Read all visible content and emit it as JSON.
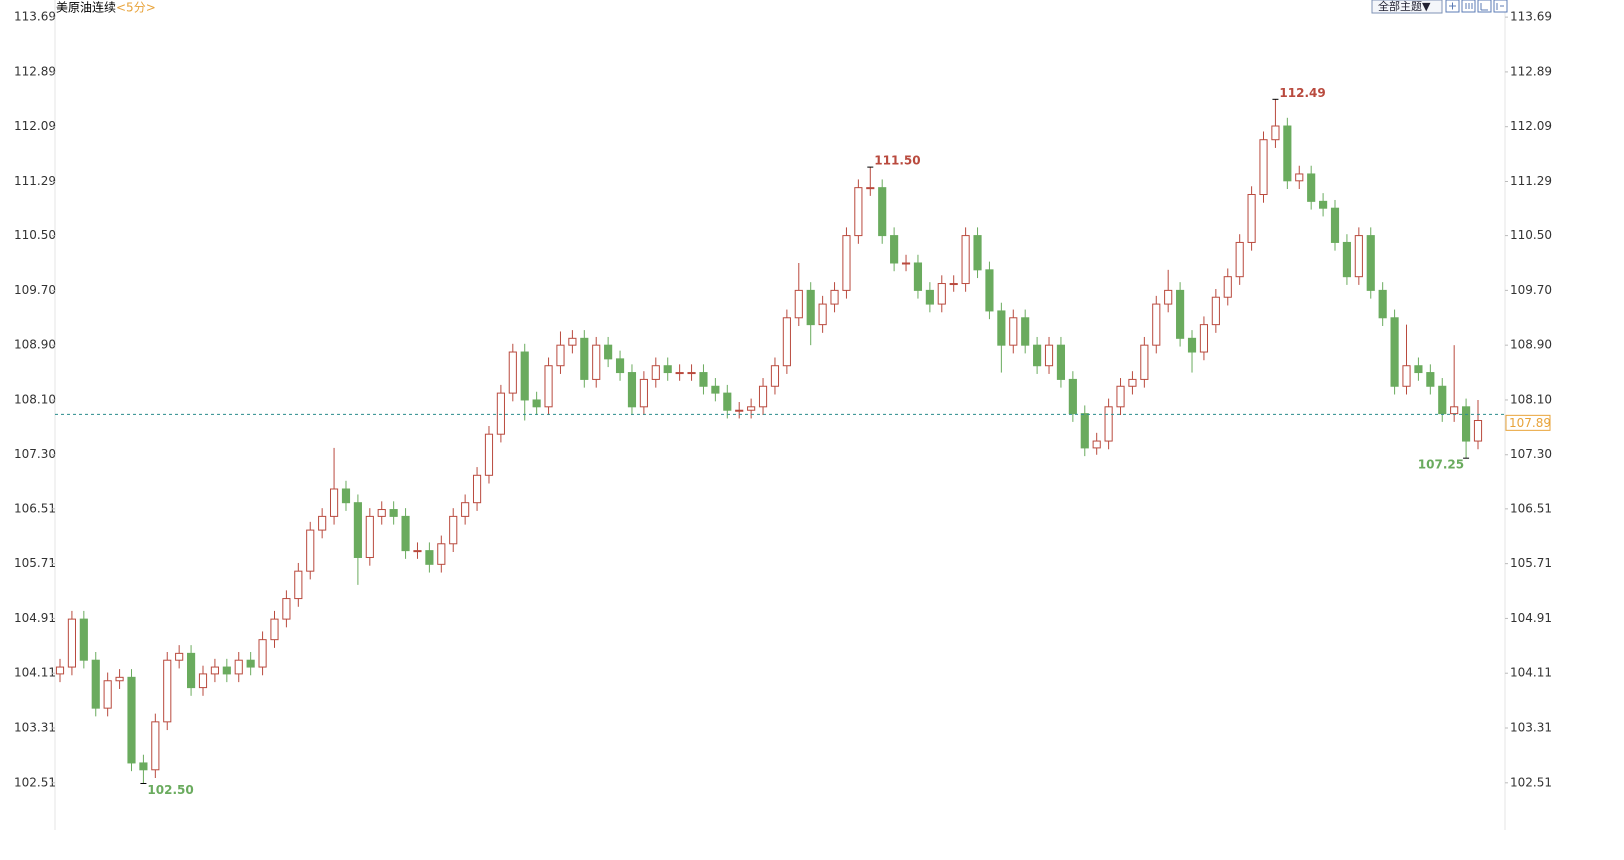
{
  "chart_data": {
    "type": "candlestick",
    "title": "美原油连续",
    "subtitle": "<5分>",
    "ylim": [
      101.85,
      113.94
    ],
    "yticks": [
      113.69,
      112.89,
      112.09,
      111.29,
      {
        "value": 110.5,
        "label": "110.50"
      },
      {
        "value": 109.7,
        "label": "109.70"
      },
      {
        "value": 108.9,
        "label": "108.90"
      },
      {
        "value": 108.1,
        "label": "108.10"
      },
      {
        "value": 107.3,
        "label": "107.30"
      },
      106.51,
      105.71,
      104.91,
      104.11,
      103.31,
      102.51
    ],
    "grid": false,
    "up_color": "#b94a3e",
    "down_color": "#6aab5e",
    "series": {
      "open": [
        104.1,
        104.2,
        104.9,
        104.3,
        103.6,
        104.0,
        104.05,
        102.8,
        102.7,
        103.4,
        104.3,
        104.4,
        103.9,
        104.1,
        104.2,
        104.1,
        104.3,
        104.2,
        104.6,
        104.9,
        105.2,
        105.6,
        106.2,
        106.4,
        106.8,
        106.6,
        105.8,
        106.4,
        106.5,
        106.4,
        105.9,
        105.9,
        105.7,
        106.0,
        106.4,
        106.6,
        107.0,
        107.6,
        108.2,
        108.8,
        108.1,
        108.0,
        108.6,
        108.9,
        109.0,
        108.4,
        108.9,
        108.7,
        108.5,
        108.0,
        108.4,
        108.6,
        108.5,
        108.5,
        108.5,
        108.3,
        108.2,
        107.95,
        107.95,
        108.0,
        108.3,
        108.6,
        109.3,
        109.7,
        109.2,
        109.5,
        109.7,
        110.5,
        111.2,
        111.2,
        110.5,
        110.1,
        110.1,
        109.7,
        109.5,
        109.8,
        109.8,
        110.5,
        110.0,
        109.4,
        108.9,
        109.3,
        108.9,
        108.6,
        108.9,
        108.4,
        107.9,
        107.4,
        107.5,
        108.0,
        108.3,
        108.4,
        108.9,
        109.5,
        109.7,
        109.0,
        108.8,
        109.2,
        109.6,
        109.9,
        110.4,
        111.1,
        111.9,
        112.1,
        111.3,
        111.4,
        111.0,
        110.9,
        110.4,
        109.9,
        110.5,
        109.7,
        109.3,
        108.3,
        108.6,
        108.5,
        108.3,
        107.9,
        108.0,
        107.5
      ],
      "high": [
        104.32,
        105.02,
        105.02,
        104.42,
        104.12,
        104.17,
        104.17,
        102.92,
        103.52,
        104.42,
        104.52,
        104.52,
        104.22,
        104.32,
        104.32,
        104.42,
        104.42,
        104.72,
        105.02,
        105.32,
        105.72,
        106.32,
        106.52,
        107.4,
        106.92,
        106.72,
        106.52,
        106.62,
        106.62,
        106.52,
        106.02,
        106.02,
        106.12,
        106.52,
        106.72,
        107.12,
        107.72,
        108.32,
        108.92,
        108.92,
        108.22,
        108.72,
        109.1,
        109.12,
        109.12,
        109.02,
        109.02,
        108.82,
        108.62,
        108.52,
        108.72,
        108.72,
        108.62,
        108.62,
        108.62,
        108.42,
        108.32,
        108.07,
        108.12,
        108.42,
        108.72,
        109.42,
        110.1,
        109.82,
        109.62,
        109.82,
        110.62,
        111.32,
        111.5,
        111.32,
        110.62,
        110.22,
        110.22,
        109.82,
        109.92,
        109.92,
        110.62,
        110.62,
        110.12,
        109.52,
        109.42,
        109.42,
        109.02,
        109.02,
        109.02,
        108.52,
        108.02,
        107.62,
        108.12,
        108.42,
        108.52,
        109.02,
        109.62,
        110.0,
        109.82,
        109.12,
        109.32,
        109.72,
        110.02,
        110.52,
        111.22,
        112.02,
        112.49,
        112.22,
        111.52,
        111.52,
        111.12,
        111.02,
        110.52,
        110.62,
        110.62,
        109.82,
        109.42,
        109.2,
        108.72,
        108.62,
        108.42,
        108.9,
        108.12,
        108.1
      ],
      "low": [
        103.98,
        104.08,
        104.18,
        103.48,
        103.48,
        103.88,
        102.68,
        102.5,
        102.58,
        103.28,
        104.18,
        103.78,
        103.78,
        103.98,
        103.98,
        103.98,
        104.08,
        104.08,
        104.48,
        104.78,
        105.08,
        105.48,
        106.08,
        106.28,
        106.48,
        105.4,
        105.68,
        106.28,
        106.28,
        105.78,
        105.78,
        105.58,
        105.58,
        105.88,
        106.28,
        106.48,
        106.88,
        107.48,
        108.08,
        107.8,
        107.88,
        107.88,
        108.48,
        108.78,
        108.28,
        108.28,
        108.58,
        108.38,
        107.88,
        107.88,
        108.28,
        108.38,
        108.38,
        108.38,
        108.18,
        108.08,
        107.83,
        107.83,
        107.83,
        107.88,
        108.18,
        108.48,
        109.18,
        108.9,
        109.08,
        109.38,
        109.58,
        110.38,
        111.08,
        110.38,
        109.98,
        109.98,
        109.58,
        109.38,
        109.38,
        109.68,
        109.68,
        109.88,
        109.28,
        108.5,
        108.78,
        108.78,
        108.48,
        108.48,
        108.28,
        107.78,
        107.28,
        107.3,
        107.38,
        107.88,
        108.18,
        108.28,
        108.78,
        109.38,
        108.88,
        108.5,
        108.68,
        109.08,
        109.48,
        109.78,
        110.28,
        110.98,
        111.78,
        111.18,
        111.18,
        110.88,
        110.78,
        110.28,
        109.78,
        109.78,
        109.58,
        109.18,
        108.18,
        108.18,
        108.38,
        108.18,
        107.78,
        107.78,
        107.25,
        107.38
      ],
      "close": [
        104.2,
        104.9,
        104.3,
        103.6,
        104.0,
        104.05,
        102.8,
        102.7,
        103.4,
        104.3,
        104.4,
        103.9,
        104.1,
        104.2,
        104.1,
        104.3,
        104.2,
        104.6,
        104.9,
        105.2,
        105.6,
        106.2,
        106.4,
        106.8,
        106.6,
        105.8,
        106.4,
        106.5,
        106.4,
        105.9,
        105.9,
        105.7,
        106.0,
        106.4,
        106.6,
        107.0,
        107.6,
        108.2,
        108.8,
        108.1,
        108.0,
        108.6,
        108.9,
        109.0,
        108.4,
        108.9,
        108.7,
        108.5,
        108.0,
        108.4,
        108.6,
        108.5,
        108.5,
        108.5,
        108.3,
        108.2,
        107.95,
        107.95,
        108.0,
        108.3,
        108.6,
        109.3,
        109.7,
        109.2,
        109.5,
        109.7,
        110.5,
        111.2,
        111.2,
        110.5,
        110.1,
        110.1,
        109.7,
        109.5,
        109.8,
        109.8,
        110.5,
        110.0,
        109.4,
        108.9,
        109.3,
        108.9,
        108.6,
        108.9,
        108.4,
        107.9,
        107.4,
        107.5,
        108.0,
        108.3,
        108.4,
        108.9,
        109.5,
        109.7,
        109.0,
        108.8,
        109.2,
        109.6,
        109.9,
        110.4,
        111.1,
        111.9,
        112.1,
        111.3,
        111.4,
        111.0,
        110.9,
        110.4,
        109.9,
        110.5,
        109.7,
        109.3,
        108.3,
        108.6,
        108.5,
        108.3,
        107.9,
        108.0,
        107.5,
        107.8
      ]
    },
    "annotations": [
      {
        "text": "102.50",
        "value": 102.5,
        "field": "low"
      },
      {
        "text": "111.50",
        "value": 111.5,
        "field": "high"
      },
      {
        "text": "112.49",
        "value": 112.49,
        "field": "high"
      },
      {
        "text": "107.25",
        "value": 107.25,
        "field": "low"
      }
    ],
    "last_price": {
      "value": 107.89,
      "color": "#e8a33a"
    }
  },
  "toolbar": {
    "theme_button": "全部主题▼"
  }
}
